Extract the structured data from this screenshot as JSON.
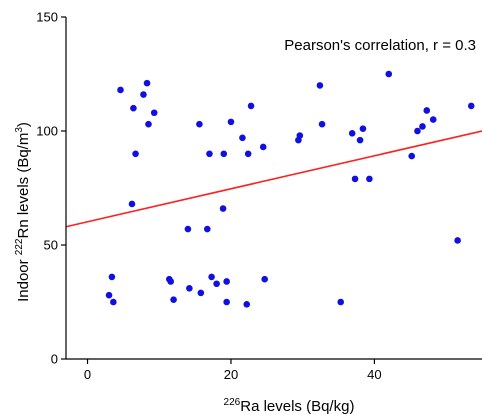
{
  "chart_data": {
    "type": "scatter",
    "xlabel": {
      "sup": "226",
      "text": "Ra levels (Bq/kg)"
    },
    "ylabel": {
      "pre": "Indoor ",
      "sup": "222",
      "mid": "Rn levels (Bq/m",
      "sup2": "3",
      "post": ")"
    },
    "annotation": "Pearson's correlation, r = 0.3",
    "xlim": [
      -3,
      55
    ],
    "ylim": [
      0,
      150
    ],
    "xticks": [
      0,
      20,
      40
    ],
    "yticks": [
      0,
      50,
      100,
      150
    ],
    "point_color": "#1010e0",
    "line_color": "#ff2020",
    "regression": {
      "x": [
        -3,
        55
      ],
      "y": [
        58,
        100
      ]
    },
    "points": [
      {
        "x": 3.0,
        "y": 28
      },
      {
        "x": 3.4,
        "y": 36
      },
      {
        "x": 3.6,
        "y": 25
      },
      {
        "x": 4.6,
        "y": 118
      },
      {
        "x": 6.2,
        "y": 68
      },
      {
        "x": 6.4,
        "y": 110
      },
      {
        "x": 6.7,
        "y": 90
      },
      {
        "x": 7.8,
        "y": 116
      },
      {
        "x": 8.3,
        "y": 121
      },
      {
        "x": 8.5,
        "y": 103
      },
      {
        "x": 9.3,
        "y": 108
      },
      {
        "x": 11.4,
        "y": 35
      },
      {
        "x": 11.6,
        "y": 34
      },
      {
        "x": 12.0,
        "y": 26
      },
      {
        "x": 14.0,
        "y": 57
      },
      {
        "x": 14.2,
        "y": 31
      },
      {
        "x": 15.6,
        "y": 103
      },
      {
        "x": 15.8,
        "y": 29
      },
      {
        "x": 16.7,
        "y": 57
      },
      {
        "x": 17.0,
        "y": 90
      },
      {
        "x": 17.3,
        "y": 36
      },
      {
        "x": 18.0,
        "y": 33
      },
      {
        "x": 18.9,
        "y": 66
      },
      {
        "x": 19.0,
        "y": 90
      },
      {
        "x": 19.4,
        "y": 25
      },
      {
        "x": 19.4,
        "y": 34
      },
      {
        "x": 20.0,
        "y": 104
      },
      {
        "x": 21.6,
        "y": 97
      },
      {
        "x": 22.2,
        "y": 24
      },
      {
        "x": 22.4,
        "y": 90
      },
      {
        "x": 22.8,
        "y": 111
      },
      {
        "x": 24.5,
        "y": 93
      },
      {
        "x": 24.7,
        "y": 35
      },
      {
        "x": 29.4,
        "y": 96
      },
      {
        "x": 29.6,
        "y": 98
      },
      {
        "x": 32.4,
        "y": 120
      },
      {
        "x": 32.7,
        "y": 103
      },
      {
        "x": 35.3,
        "y": 25
      },
      {
        "x": 36.9,
        "y": 99
      },
      {
        "x": 37.3,
        "y": 79
      },
      {
        "x": 38.0,
        "y": 96
      },
      {
        "x": 38.4,
        "y": 101
      },
      {
        "x": 39.3,
        "y": 79
      },
      {
        "x": 42.0,
        "y": 125
      },
      {
        "x": 45.2,
        "y": 89
      },
      {
        "x": 46.0,
        "y": 100
      },
      {
        "x": 46.7,
        "y": 102
      },
      {
        "x": 47.3,
        "y": 109
      },
      {
        "x": 48.2,
        "y": 105
      },
      {
        "x": 51.6,
        "y": 52
      },
      {
        "x": 53.5,
        "y": 111
      }
    ]
  }
}
